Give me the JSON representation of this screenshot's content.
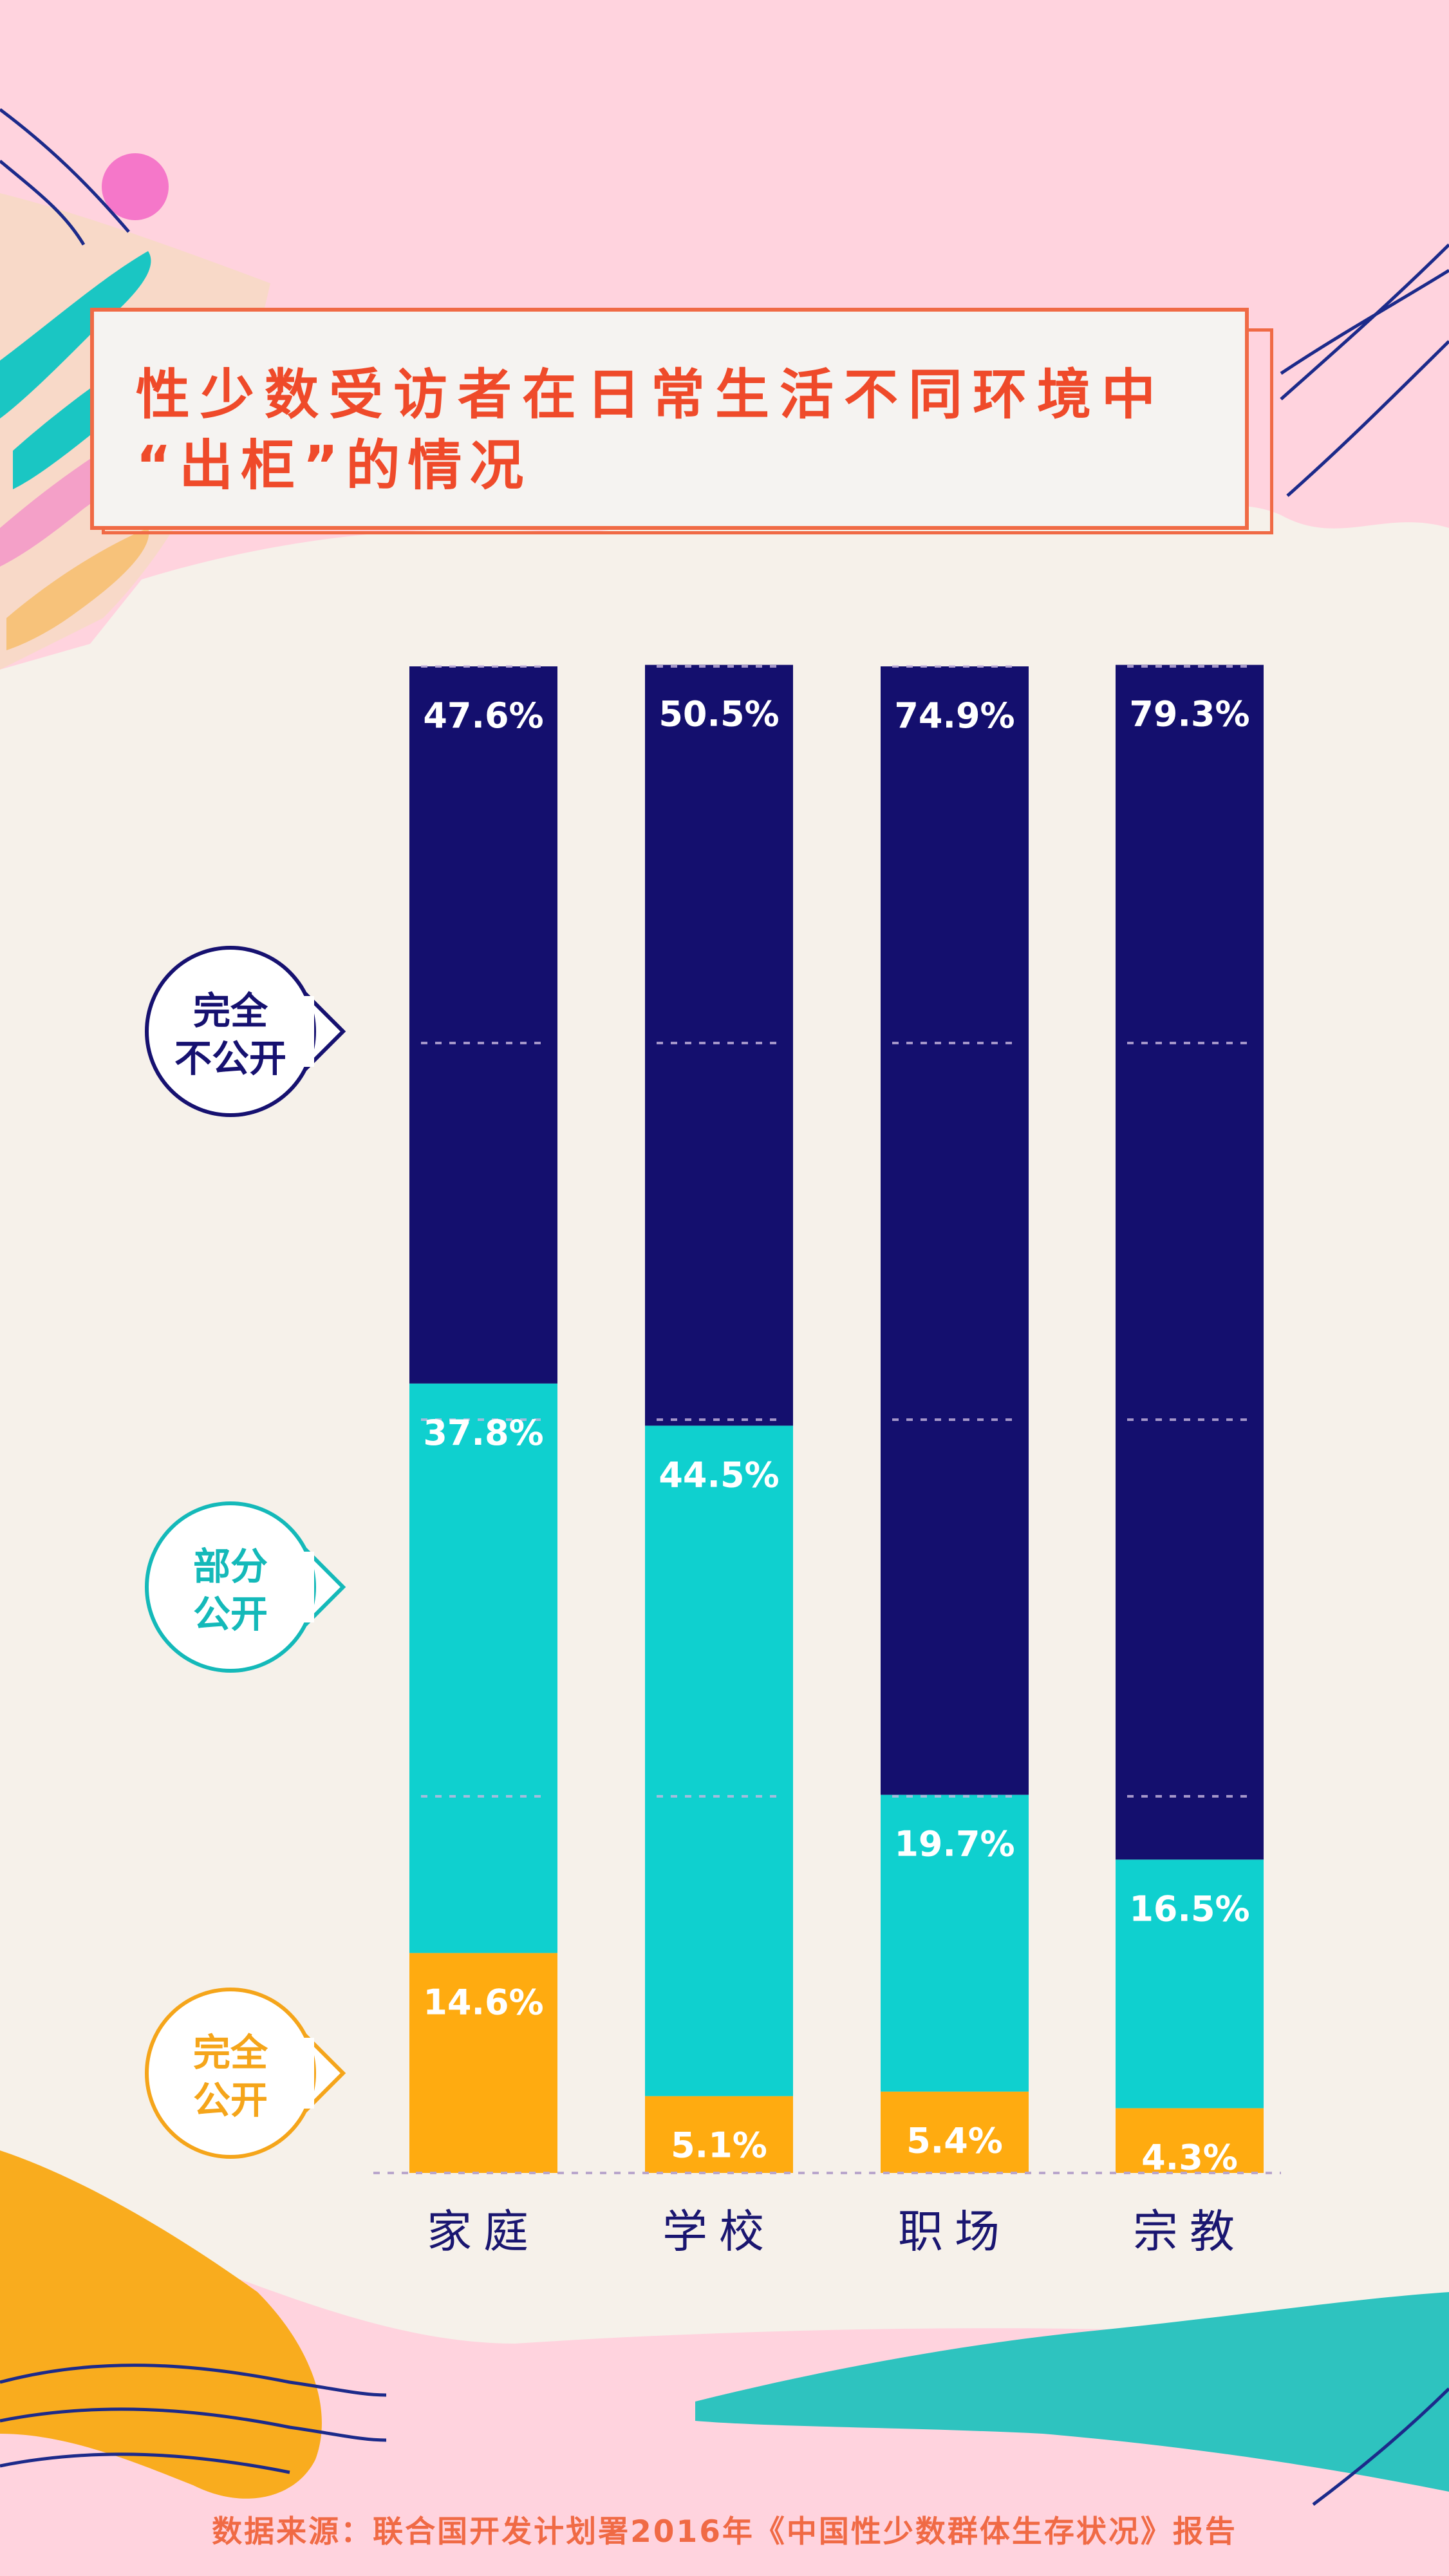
{
  "title": {
    "line1": "性少数受访者在日常生活不同环境中",
    "line2": "“出柜”的情况"
  },
  "source": "数据来源：联合国开发计划署2016年《中国性少数群体生存状况》报告",
  "legend": [
    {
      "line1": "完全",
      "line2": "不公开",
      "color": "#161170"
    },
    {
      "line1": "部分",
      "line2": "公开",
      "color": "#14b9b9"
    },
    {
      "line1": "完全",
      "line2": "公开",
      "color": "#f5a51a"
    }
  ],
  "colors": {
    "not_open": "#140f6e",
    "partial": "#0fd0cf",
    "full_open": "#ffab10",
    "label": "#ffffff",
    "title": "#ef4a2a"
  },
  "chart_data": {
    "type": "bar",
    "stacked": true,
    "categories": [
      "家庭",
      "学校",
      "职场",
      "宗教"
    ],
    "series": [
      {
        "name": "完全公开",
        "values": [
          14.6,
          5.1,
          5.4,
          4.3
        ],
        "labels": [
          "14.6%",
          "5.1%",
          "5.4%",
          "4.3%"
        ]
      },
      {
        "name": "部分公开",
        "values": [
          37.8,
          44.5,
          19.7,
          16.5
        ],
        "labels": [
          "37.8%",
          "44.5%",
          "19.7%",
          "16.5%"
        ]
      },
      {
        "name": "完全不公开",
        "values": [
          47.6,
          50.5,
          74.9,
          79.3
        ],
        "labels": [
          "47.6%",
          "50.5%",
          "74.9%",
          "79.3%"
        ]
      }
    ],
    "ylim": [
      0,
      100
    ],
    "gridlines": [
      0,
      25,
      50,
      75,
      100
    ]
  }
}
